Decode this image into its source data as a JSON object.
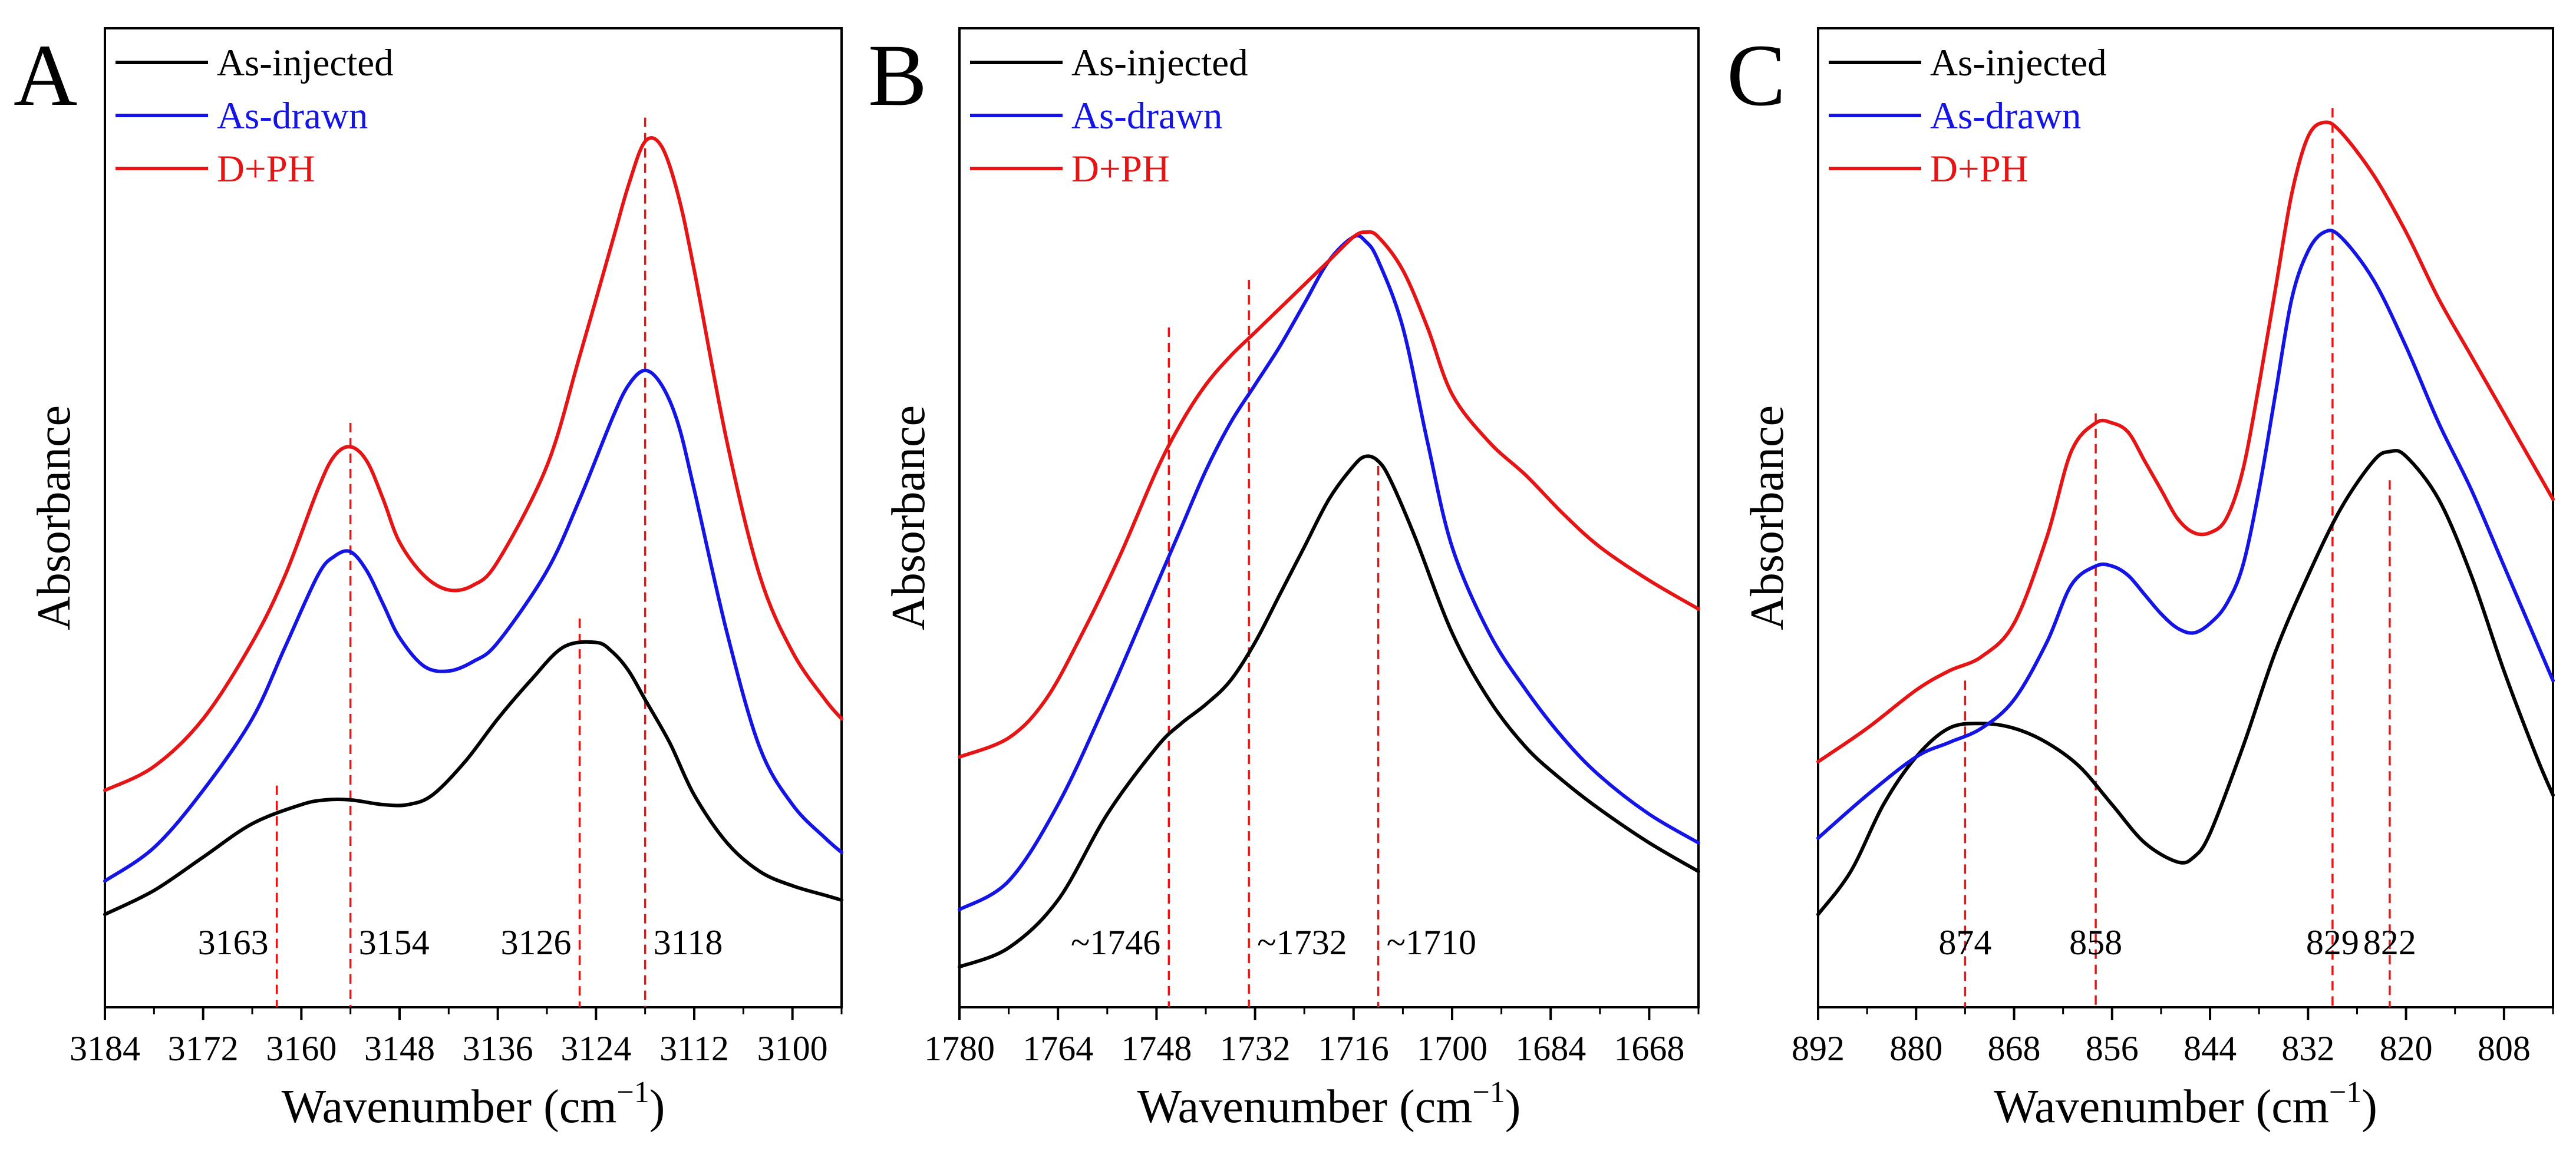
{
  "figure": {
    "x_unit_label": "Wavenumber (cm",
    "x_unit_exponent": "−1",
    "x_unit_close": ")"
  },
  "chart_data": [
    {
      "type": "line",
      "panel_label": "A",
      "ylabel": "Absorbance",
      "xlim": [
        3184,
        3094
      ],
      "ylim": [
        0,
        1
      ],
      "xticks": [
        3184,
        3172,
        3160,
        3148,
        3136,
        3124,
        3112,
        3100
      ],
      "legend": "top-left",
      "series": [
        {
          "name": "As-injected",
          "color": "#000000",
          "x": [
            3184,
            3178,
            3172,
            3166,
            3160,
            3157,
            3154,
            3150,
            3147,
            3144,
            3140,
            3136,
            3132,
            3128,
            3124,
            3122,
            3120,
            3118,
            3115,
            3112,
            3108,
            3104,
            3100,
            3096,
            3094
          ],
          "y": [
            0.085,
            0.11,
            0.145,
            0.18,
            0.2,
            0.205,
            0.205,
            0.2,
            0.2,
            0.21,
            0.245,
            0.29,
            0.33,
            0.365,
            0.37,
            0.36,
            0.34,
            0.31,
            0.265,
            0.21,
            0.16,
            0.13,
            0.115,
            0.105,
            0.1
          ]
        },
        {
          "name": "As-drawn",
          "color": "#1414e6",
          "x": [
            3184,
            3178,
            3172,
            3166,
            3162,
            3158,
            3156,
            3154,
            3152,
            3150,
            3148,
            3145,
            3142,
            3139,
            3136,
            3130,
            3126,
            3122,
            3120,
            3118,
            3116,
            3114,
            3112,
            3108,
            3104,
            3100,
            3096,
            3094
          ],
          "y": [
            0.12,
            0.155,
            0.215,
            0.29,
            0.365,
            0.44,
            0.46,
            0.465,
            0.445,
            0.41,
            0.375,
            0.345,
            0.34,
            0.35,
            0.37,
            0.445,
            0.52,
            0.605,
            0.64,
            0.655,
            0.64,
            0.6,
            0.53,
            0.38,
            0.26,
            0.2,
            0.165,
            0.15
          ]
        },
        {
          "name": "D+PH",
          "color": "#e61414",
          "x": [
            3184,
            3178,
            3172,
            3166,
            3162,
            3158,
            3156,
            3154,
            3152,
            3150,
            3148,
            3145,
            3142,
            3139,
            3136,
            3130,
            3126,
            3122,
            3120,
            3118,
            3116,
            3114,
            3112,
            3108,
            3104,
            3100,
            3096,
            3094
          ],
          "y": [
            0.215,
            0.24,
            0.29,
            0.37,
            0.44,
            0.53,
            0.565,
            0.575,
            0.56,
            0.52,
            0.475,
            0.44,
            0.425,
            0.43,
            0.455,
            0.555,
            0.67,
            0.79,
            0.85,
            0.895,
            0.89,
            0.84,
            0.76,
            0.58,
            0.44,
            0.36,
            0.31,
            0.29
          ]
        }
      ],
      "peaks": [
        {
          "x": 3163,
          "label": "3163",
          "y_top": 0.22,
          "label_side": "left"
        },
        {
          "x": 3154,
          "label": "3154",
          "y_top": 0.6,
          "label_side": "right"
        },
        {
          "x": 3126,
          "label": "3126",
          "y_top": 0.395,
          "label_side": "left"
        },
        {
          "x": 3118,
          "label": "3118",
          "y_top": 0.92,
          "label_side": "right"
        }
      ]
    },
    {
      "type": "line",
      "panel_label": "B",
      "ylabel": "Absorbance",
      "xlim": [
        1780,
        1660
      ],
      "ylim": [
        0,
        1
      ],
      "xticks": [
        1780,
        1764,
        1748,
        1732,
        1716,
        1700,
        1684,
        1668
      ],
      "legend": "top-left",
      "series": [
        {
          "name": "As-injected",
          "color": "#000000",
          "x": [
            1780,
            1772,
            1764,
            1756,
            1748,
            1744,
            1740,
            1736,
            1732,
            1728,
            1724,
            1720,
            1716,
            1714,
            1712,
            1710,
            1706,
            1700,
            1694,
            1688,
            1682,
            1676,
            1668,
            1660
          ],
          "y": [
            0.03,
            0.05,
            0.1,
            0.19,
            0.26,
            0.285,
            0.305,
            0.33,
            0.37,
            0.42,
            0.47,
            0.52,
            0.555,
            0.565,
            0.56,
            0.54,
            0.48,
            0.38,
            0.31,
            0.26,
            0.225,
            0.195,
            0.16,
            0.13
          ]
        },
        {
          "name": "As-drawn",
          "color": "#1414e6",
          "x": [
            1780,
            1772,
            1764,
            1756,
            1748,
            1744,
            1740,
            1736,
            1732,
            1728,
            1724,
            1720,
            1716,
            1714,
            1712,
            1708,
            1704,
            1700,
            1694,
            1688,
            1682,
            1676,
            1668,
            1660
          ],
          "y": [
            0.09,
            0.12,
            0.2,
            0.31,
            0.43,
            0.49,
            0.55,
            0.6,
            0.64,
            0.68,
            0.725,
            0.77,
            0.795,
            0.79,
            0.77,
            0.7,
            0.58,
            0.47,
            0.38,
            0.32,
            0.27,
            0.23,
            0.19,
            0.16
          ]
        },
        {
          "name": "D+PH",
          "color": "#e61414",
          "x": [
            1780,
            1772,
            1766,
            1760,
            1754,
            1748,
            1744,
            1740,
            1736,
            1732,
            1728,
            1724,
            1720,
            1716,
            1714,
            1712,
            1708,
            1704,
            1700,
            1694,
            1688,
            1682,
            1676,
            1668,
            1660
          ],
          "y": [
            0.25,
            0.27,
            0.31,
            0.38,
            0.46,
            0.55,
            0.6,
            0.64,
            0.67,
            0.695,
            0.72,
            0.745,
            0.77,
            0.795,
            0.8,
            0.795,
            0.76,
            0.7,
            0.63,
            0.58,
            0.545,
            0.505,
            0.47,
            0.435,
            0.405
          ]
        }
      ],
      "peaks": [
        {
          "x": 1746,
          "label": "~1746",
          "y_top": 0.7,
          "label_side": "left"
        },
        {
          "x": 1733,
          "label": "~1732",
          "y_top": 0.75,
          "label_side": "right"
        },
        {
          "x": 1712,
          "label": "~1710",
          "y_top": 0.555,
          "label_side": "right"
        }
      ]
    },
    {
      "type": "line",
      "panel_label": "C",
      "ylabel": "Absorbance",
      "xlim": [
        892,
        802
      ],
      "ylim": [
        0,
        1
      ],
      "xticks": [
        892,
        880,
        868,
        856,
        844,
        832,
        820,
        808
      ],
      "legend": "top-left",
      "series": [
        {
          "name": "As-injected",
          "color": "#000000",
          "x": [
            892,
            888,
            884,
            880,
            876,
            872,
            868,
            864,
            860,
            856,
            852,
            848,
            846,
            844,
            840,
            836,
            832,
            828,
            824,
            822,
            820,
            816,
            812,
            808,
            804,
            802
          ],
          "y": [
            0.085,
            0.13,
            0.2,
            0.25,
            0.28,
            0.285,
            0.28,
            0.265,
            0.24,
            0.2,
            0.16,
            0.14,
            0.145,
            0.17,
            0.26,
            0.36,
            0.44,
            0.51,
            0.56,
            0.57,
            0.565,
            0.52,
            0.44,
            0.34,
            0.25,
            0.21
          ]
        },
        {
          "name": "As-drawn",
          "color": "#1414e6",
          "x": [
            892,
            886,
            880,
            876,
            872,
            868,
            864,
            861,
            858,
            856,
            854,
            852,
            850,
            848,
            846,
            844,
            842,
            840,
            838,
            836,
            834,
            832,
            830,
            828,
            824,
            820,
            816,
            812,
            808,
            804,
            802
          ],
          "y": [
            0.165,
            0.21,
            0.25,
            0.265,
            0.28,
            0.31,
            0.37,
            0.43,
            0.45,
            0.45,
            0.44,
            0.42,
            0.4,
            0.385,
            0.38,
            0.39,
            0.41,
            0.45,
            0.53,
            0.63,
            0.73,
            0.78,
            0.8,
            0.795,
            0.75,
            0.68,
            0.6,
            0.53,
            0.45,
            0.37,
            0.33
          ]
        },
        {
          "name": "D+PH",
          "color": "#e61414",
          "x": [
            892,
            886,
            880,
            876,
            872,
            868,
            864,
            861,
            858,
            856,
            854,
            852,
            850,
            848,
            846,
            844,
            842,
            840,
            838,
            836,
            834,
            832,
            830,
            828,
            824,
            820,
            816,
            812,
            808,
            804,
            802
          ],
          "y": [
            0.245,
            0.28,
            0.32,
            0.34,
            0.355,
            0.39,
            0.48,
            0.57,
            0.6,
            0.6,
            0.59,
            0.56,
            0.53,
            0.5,
            0.485,
            0.485,
            0.5,
            0.55,
            0.64,
            0.74,
            0.84,
            0.9,
            0.915,
            0.905,
            0.86,
            0.8,
            0.73,
            0.67,
            0.61,
            0.55,
            0.52
          ]
        }
      ],
      "peaks": [
        {
          "x": 874,
          "label": "874",
          "y_top": 0.33,
          "label_side": "center"
        },
        {
          "x": 858,
          "label": "858",
          "y_top": 0.61,
          "label_side": "center"
        },
        {
          "x": 829,
          "label": "829",
          "y_top": 0.93,
          "label_side": "center"
        },
        {
          "x": 822,
          "label": "822",
          "y_top": 0.54,
          "label_side": "center"
        }
      ]
    }
  ]
}
